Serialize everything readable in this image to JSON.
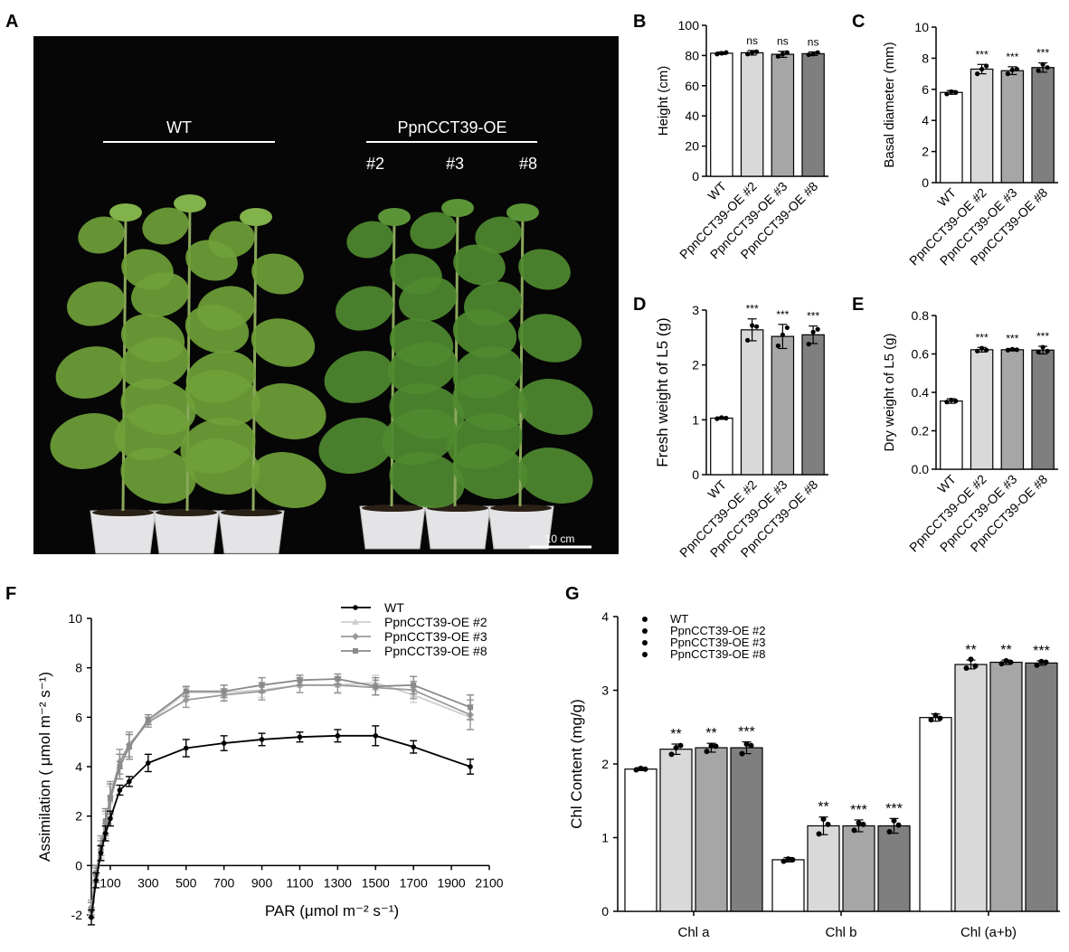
{
  "colors": {
    "wt": "#ffffff",
    "oe2": "#d9d9d9",
    "oe3": "#a6a6a6",
    "oe8": "#7f7f7f",
    "photo_bg": "#060606",
    "leaf": "#6fa038"
  },
  "photo": {
    "panel_label": "A",
    "wt_label": "WT",
    "oe_label": "PpnCCT39-OE",
    "line_labels": [
      "#2",
      "#3",
      "#8"
    ],
    "scale_bar": "10 cm"
  },
  "chart_data": [
    {
      "panel": "B",
      "type": "bar",
      "ylabel": "Height (cm)",
      "ylim": [
        0,
        100
      ],
      "yticks": [
        0,
        20,
        40,
        60,
        80,
        100
      ],
      "categories": [
        "WT",
        "PpnCCT39-OE #2",
        "PpnCCT39-OE #3",
        "PpnCCT39-OE #8"
      ],
      "values": [
        81.5,
        81.8,
        80.8,
        81.2
      ],
      "errors": [
        0.8,
        1.5,
        2.0,
        1.2
      ],
      "points": [
        [
          81,
          81.5,
          82
        ],
        [
          81,
          82,
          82.5
        ],
        [
          79.5,
          81,
          82
        ],
        [
          80.5,
          81,
          82
        ]
      ],
      "significance": [
        "",
        "ns",
        "ns",
        "ns"
      ]
    },
    {
      "panel": "C",
      "type": "bar",
      "ylabel": "Basal diameter (mm)",
      "ylim": [
        0,
        10
      ],
      "yticks": [
        0,
        2,
        4,
        6,
        8,
        10
      ],
      "categories": [
        "WT",
        "PpnCCT39-OE #2",
        "PpnCCT39-OE #3",
        "PpnCCT39-OE #8"
      ],
      "values": [
        5.8,
        7.3,
        7.2,
        7.4
      ],
      "errors": [
        0.12,
        0.3,
        0.25,
        0.3
      ],
      "points": [
        [
          5.7,
          5.85,
          5.8
        ],
        [
          7.0,
          7.3,
          7.5
        ],
        [
          7.0,
          7.25,
          7.3
        ],
        [
          7.2,
          7.6,
          7.4
        ]
      ],
      "significance": [
        "",
        "***",
        "***",
        "***"
      ]
    },
    {
      "panel": "D",
      "type": "bar",
      "ylabel": "Fresh weight of L5 (g)",
      "ylim": [
        0,
        3
      ],
      "yticks": [
        0,
        1,
        2,
        3
      ],
      "categories": [
        "WT",
        "PpnCCT39-OE #2",
        "PpnCCT39-OE #3",
        "PpnCCT39-OE #8"
      ],
      "values": [
        1.03,
        2.64,
        2.52,
        2.55
      ],
      "errors": [
        0.02,
        0.2,
        0.22,
        0.16
      ],
      "points": [
        [
          1.02,
          1.04,
          1.03
        ],
        [
          2.45,
          2.72,
          2.7
        ],
        [
          2.35,
          2.55,
          2.68
        ],
        [
          2.38,
          2.6,
          2.65
        ]
      ],
      "significance": [
        "",
        "***",
        "***",
        "***"
      ]
    },
    {
      "panel": "E",
      "type": "bar",
      "ylabel": "Dry weight of L5 (g)",
      "ylim": [
        0,
        0.8
      ],
      "yticks": [
        0.0,
        0.2,
        0.4,
        0.6,
        0.8
      ],
      "categories": [
        "WT",
        "PpnCCT39-OE #2",
        "PpnCCT39-OE #3",
        "PpnCCT39-OE #8"
      ],
      "values": [
        0.355,
        0.622,
        0.622,
        0.62
      ],
      "errors": [
        0.012,
        0.012,
        0.006,
        0.02
      ],
      "points": [
        [
          0.35,
          0.36,
          0.355
        ],
        [
          0.615,
          0.63,
          0.62
        ],
        [
          0.62,
          0.625,
          0.622
        ],
        [
          0.61,
          0.635,
          0.615
        ]
      ],
      "significance": [
        "",
        "***",
        "***",
        "***"
      ]
    },
    {
      "panel": "F",
      "type": "line",
      "xlabel": "PAR (μmol m⁻² s⁻¹)",
      "ylabel": "Assimilation ( μmol m⁻² s⁻¹)",
      "xlim": [
        0,
        2100
      ],
      "ylim": [
        -2,
        10
      ],
      "xticks": [
        100,
        300,
        500,
        700,
        900,
        1100,
        1300,
        1500,
        1700,
        1900,
        2100
      ],
      "yticks": [
        -2,
        0,
        2,
        4,
        6,
        8,
        10
      ],
      "x": [
        0,
        25,
        50,
        75,
        100,
        150,
        200,
        300,
        500,
        700,
        900,
        1100,
        1300,
        1500,
        1700,
        2000
      ],
      "series": [
        {
          "name": "WT",
          "marker": "circle",
          "values": [
            -2.1,
            -0.6,
            0.5,
            1.3,
            1.9,
            3.05,
            3.4,
            4.15,
            4.75,
            4.95,
            5.1,
            5.2,
            5.25,
            5.25,
            4.8,
            4.0
          ],
          "errors": [
            0.3,
            0.3,
            0.3,
            0.3,
            0.3,
            0.2,
            0.2,
            0.35,
            0.35,
            0.3,
            0.25,
            0.2,
            0.25,
            0.4,
            0.25,
            0.3
          ]
        },
        {
          "name": "PpnCCT39-OE #2",
          "marker": "triangle",
          "values": [
            -1.8,
            -0.4,
            0.7,
            1.6,
            2.6,
            4.0,
            4.8,
            5.8,
            7.0,
            7.0,
            7.1,
            7.3,
            7.3,
            7.4,
            6.9,
            6.0
          ],
          "errors": [
            0.3,
            0.3,
            0.4,
            0.5,
            0.6,
            0.5,
            0.5,
            0.2,
            0.2,
            0.3,
            0.3,
            0.3,
            0.35,
            0.3,
            0.3,
            0.5
          ]
        },
        {
          "name": "PpnCCT39-OE #3",
          "marker": "diamond",
          "values": [
            -1.7,
            -0.4,
            0.8,
            1.7,
            2.8,
            4.2,
            4.9,
            5.8,
            6.7,
            6.9,
            7.05,
            7.3,
            7.3,
            7.2,
            7.1,
            6.1
          ],
          "errors": [
            0.3,
            0.3,
            0.4,
            0.5,
            0.6,
            0.5,
            0.5,
            0.2,
            0.3,
            0.25,
            0.35,
            0.3,
            0.3,
            0.3,
            0.35,
            0.6
          ]
        },
        {
          "name": "PpnCCT39-OE #8",
          "marker": "square",
          "values": [
            -1.8,
            -0.3,
            0.6,
            1.8,
            2.7,
            4.0,
            4.8,
            5.9,
            7.05,
            7.05,
            7.3,
            7.5,
            7.55,
            7.25,
            7.3,
            6.4
          ],
          "errors": [
            0.3,
            0.3,
            0.4,
            0.5,
            0.6,
            0.5,
            0.5,
            0.2,
            0.2,
            0.25,
            0.3,
            0.2,
            0.2,
            0.35,
            0.35,
            0.5
          ]
        }
      ],
      "legend": "top-right"
    },
    {
      "panel": "G",
      "type": "bar",
      "ylabel": "Chl Content (mg/g)",
      "ylim": [
        0,
        4
      ],
      "yticks": [
        0,
        1,
        2,
        3,
        4
      ],
      "categories": [
        "Chl a",
        "Chl b",
        "Chl (a+b)"
      ],
      "series": [
        {
          "name": "WT",
          "values": [
            1.93,
            0.7,
            2.63
          ],
          "errors": [
            0.02,
            0.03,
            0.05
          ],
          "points": [
            [
              1.92,
              1.94,
              1.93
            ],
            [
              0.68,
              0.71,
              0.7
            ],
            [
              2.6,
              2.66,
              2.62
            ]
          ],
          "significance": [
            "",
            "",
            ""
          ]
        },
        {
          "name": "PpnCCT39-OE #2",
          "values": [
            2.2,
            1.16,
            3.35
          ],
          "errors": [
            0.07,
            0.12,
            0.06
          ],
          "points": [
            [
              2.13,
              2.22,
              2.25
            ],
            [
              1.05,
              1.25,
              1.18
            ],
            [
              3.3,
              3.42,
              3.33
            ]
          ],
          "significance": [
            "**",
            "**",
            "**"
          ]
        },
        {
          "name": "PpnCCT39-OE #3",
          "values": [
            2.22,
            1.16,
            3.38
          ],
          "errors": [
            0.06,
            0.08,
            0.03
          ],
          "points": [
            [
              2.17,
              2.25,
              2.24
            ],
            [
              1.1,
              1.2,
              1.18
            ],
            [
              3.36,
              3.4,
              3.38
            ]
          ],
          "significance": [
            "**",
            "***",
            "**"
          ]
        },
        {
          "name": "PpnCCT39-OE #8",
          "values": [
            2.22,
            1.16,
            3.37
          ],
          "errors": [
            0.08,
            0.1,
            0.03
          ],
          "points": [
            [
              2.14,
              2.27,
              2.25
            ],
            [
              1.08,
              1.23,
              1.17
            ],
            [
              3.34,
              3.39,
              3.38
            ]
          ],
          "significance": [
            "***",
            "***",
            "***"
          ]
        }
      ],
      "legend": "top-left"
    }
  ]
}
